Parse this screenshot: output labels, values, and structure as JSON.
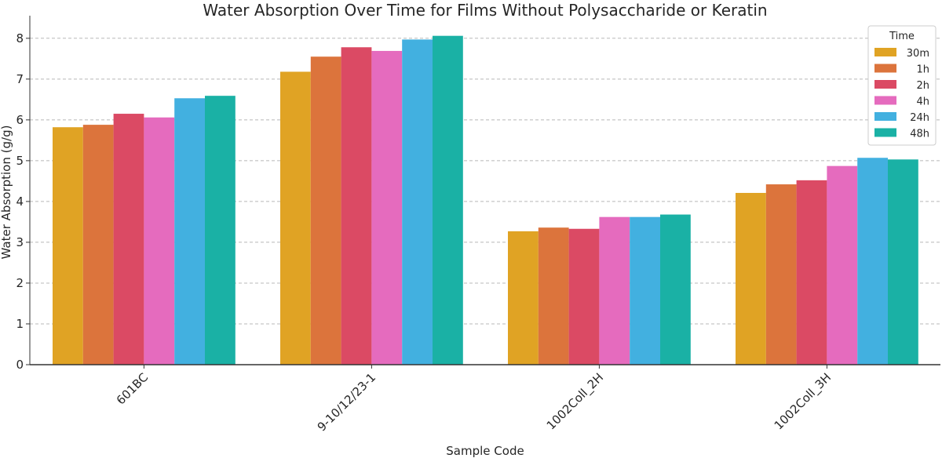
{
  "chart_data": {
    "type": "bar",
    "title": "Water Absorption Over Time for Films Without Polysaccharide or Keratin",
    "xlabel": "Sample Code",
    "ylabel": "Water Absorption (g/g)",
    "ylim": [
      0,
      8.4
    ],
    "yticks": [
      0,
      1,
      2,
      3,
      4,
      5,
      6,
      7,
      8
    ],
    "grid": "horizontal dashed",
    "categories": [
      "601BC",
      "9-10/12/23-1",
      "1002Coll_2H",
      "1002Coll_3H"
    ],
    "legend": {
      "title": "Time",
      "placement": "top-right"
    },
    "series": [
      {
        "name": "30m",
        "color": "#E0A324",
        "values": [
          5.82,
          7.18,
          3.27,
          4.21
        ]
      },
      {
        "name": "1h",
        "color": "#DC743C",
        "values": [
          5.88,
          7.55,
          3.36,
          4.42
        ]
      },
      {
        "name": "2h",
        "color": "#DB4A64",
        "values": [
          6.15,
          7.78,
          3.33,
          4.52
        ]
      },
      {
        "name": "4h",
        "color": "#E56BBE",
        "values": [
          6.06,
          7.69,
          3.62,
          4.87
        ]
      },
      {
        "name": "24h",
        "color": "#42B0E0",
        "values": [
          6.53,
          7.97,
          3.62,
          5.07
        ]
      },
      {
        "name": "48h",
        "color": "#1AB1A5",
        "values": [
          6.59,
          8.06,
          3.68,
          5.03
        ]
      }
    ]
  }
}
